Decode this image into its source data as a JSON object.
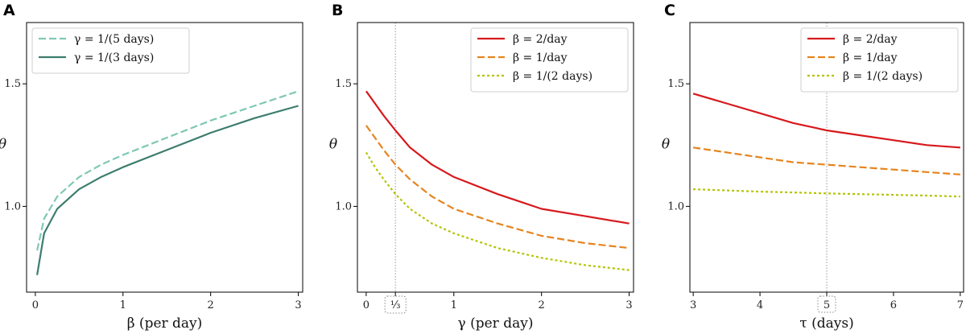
{
  "chart_data": [
    {
      "panel": "A",
      "type": "line",
      "xlabel": "β (per day)",
      "ylabel": "θ",
      "xlim": [
        -0.1,
        3.05
      ],
      "ylim": [
        0.65,
        1.75
      ],
      "xticks": [
        0,
        1,
        2,
        3
      ],
      "yticks": [
        1.0,
        1.5
      ],
      "ytick_labels": [
        "1.0",
        "1.5"
      ],
      "grid": false,
      "legend": "top-left",
      "series": [
        {
          "name": "γ = 1/(5 days)",
          "color": "#7fc8b4",
          "dash": "dashed",
          "x": [
            0.02,
            0.1,
            0.25,
            0.5,
            0.75,
            1.0,
            1.5,
            2.0,
            2.5,
            3.0
          ],
          "y": [
            0.82,
            0.95,
            1.04,
            1.12,
            1.17,
            1.21,
            1.28,
            1.35,
            1.41,
            1.47
          ]
        },
        {
          "name": "γ = 1/(3 days)",
          "color": "#3d7d6e",
          "dash": "solid",
          "x": [
            0.02,
            0.1,
            0.25,
            0.5,
            0.75,
            1.0,
            1.5,
            2.0,
            2.5,
            3.0
          ],
          "y": [
            0.72,
            0.89,
            0.99,
            1.07,
            1.12,
            1.16,
            1.23,
            1.3,
            1.36,
            1.41
          ]
        }
      ]
    },
    {
      "panel": "B",
      "type": "line",
      "xlabel": "γ (per day)",
      "ylabel": "θ",
      "xlim": [
        -0.1,
        3.05
      ],
      "ylim": [
        0.65,
        1.75
      ],
      "xticks": [
        0,
        1,
        2,
        3
      ],
      "yticks": [
        1.0,
        1.5
      ],
      "ytick_labels": [
        "1.0",
        "1.5"
      ],
      "vline": 0.3333,
      "vline_label": "¹⁄₃",
      "grid": false,
      "legend": "top-right",
      "series": [
        {
          "name": "β = 2/day",
          "color": "#d7191c",
          "dash": "solid",
          "x": [
            0.0,
            0.1,
            0.2,
            0.3333,
            0.5,
            0.75,
            1.0,
            1.5,
            2.0,
            2.5,
            3.0
          ],
          "y": [
            1.47,
            1.42,
            1.37,
            1.31,
            1.24,
            1.17,
            1.12,
            1.05,
            0.99,
            0.96,
            0.93
          ]
        },
        {
          "name": "β = 1/day",
          "color": "#e6841e",
          "dash": "dashed",
          "x": [
            0.0,
            0.1,
            0.2,
            0.3333,
            0.5,
            0.75,
            1.0,
            1.5,
            2.0,
            2.5,
            3.0
          ],
          "y": [
            1.33,
            1.28,
            1.23,
            1.17,
            1.11,
            1.04,
            0.99,
            0.93,
            0.88,
            0.85,
            0.83
          ]
        },
        {
          "name": "β = 1/(2 days)",
          "color": "#b5c400",
          "dash": "dotted",
          "x": [
            0.0,
            0.1,
            0.2,
            0.3333,
            0.5,
            0.75,
            1.0,
            1.5,
            2.0,
            2.5,
            3.0
          ],
          "y": [
            1.22,
            1.16,
            1.11,
            1.05,
            0.99,
            0.93,
            0.89,
            0.83,
            0.79,
            0.76,
            0.74
          ]
        }
      ]
    },
    {
      "panel": "C",
      "type": "line",
      "xlabel": "τ (days)",
      "ylabel": "θ",
      "xlim": [
        2.95,
        7.05
      ],
      "ylim": [
        0.65,
        1.75
      ],
      "xticks": [
        3,
        4,
        5,
        6,
        7
      ],
      "yticks": [
        1.0,
        1.5
      ],
      "ytick_labels": [
        "1.0",
        "1.5"
      ],
      "vline": 5,
      "vline_label": "5",
      "grid": false,
      "legend": "top-right",
      "series": [
        {
          "name": "β = 2/day",
          "color": "#d7191c",
          "dash": "solid",
          "x": [
            3,
            3.5,
            4,
            4.5,
            5,
            5.5,
            6,
            6.5,
            7
          ],
          "y": [
            1.46,
            1.42,
            1.38,
            1.34,
            1.31,
            1.29,
            1.27,
            1.25,
            1.24
          ]
        },
        {
          "name": "β = 1/day",
          "color": "#e6841e",
          "dash": "dashed",
          "x": [
            3,
            3.5,
            4,
            4.5,
            5,
            5.5,
            6,
            6.5,
            7
          ],
          "y": [
            1.24,
            1.22,
            1.2,
            1.18,
            1.17,
            1.16,
            1.15,
            1.14,
            1.13
          ]
        },
        {
          "name": "β = 1/(2 days)",
          "color": "#b5c400",
          "dash": "dotted",
          "x": [
            3,
            3.5,
            4,
            4.5,
            5,
            5.5,
            6,
            6.5,
            7
          ],
          "y": [
            1.07,
            1.065,
            1.06,
            1.057,
            1.053,
            1.05,
            1.047,
            1.044,
            1.04
          ]
        }
      ]
    }
  ]
}
